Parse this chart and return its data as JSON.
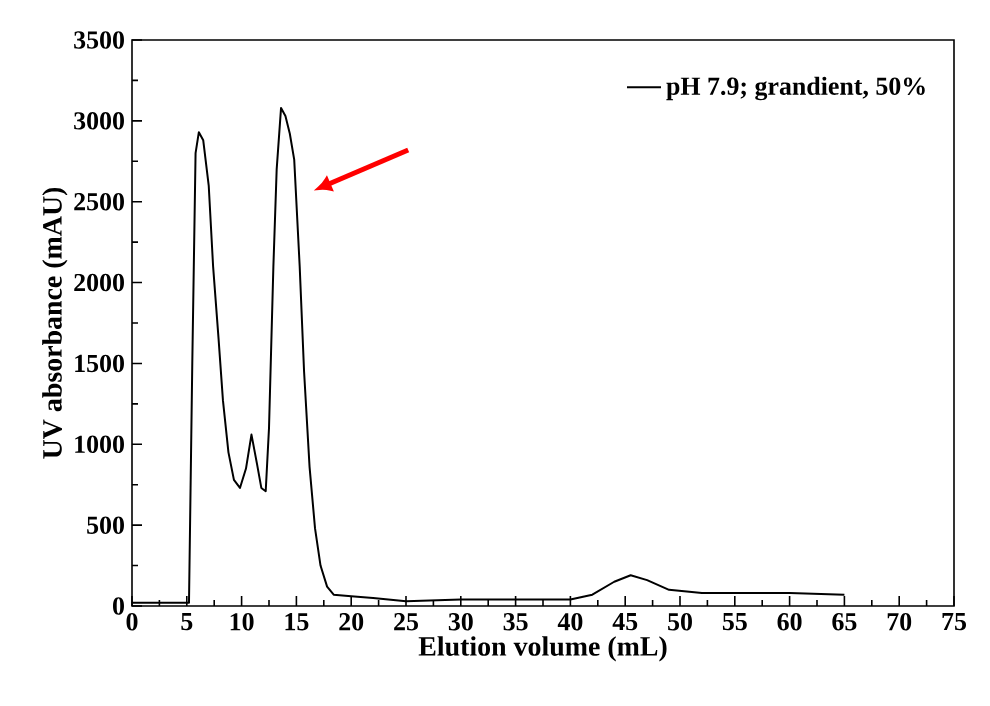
{
  "chart_data": {
    "type": "line",
    "xlabel": "Elution volume (mL)",
    "ylabel": "UV absorbance (mAU)",
    "xlim": [
      0,
      75
    ],
    "ylim": [
      0,
      3500
    ],
    "xticks": [
      0,
      5,
      10,
      15,
      20,
      25,
      30,
      35,
      40,
      45,
      50,
      55,
      60,
      65,
      70,
      75
    ],
    "yticks": [
      0,
      500,
      1000,
      1500,
      2000,
      2500,
      3000,
      3500
    ],
    "legend": "top right",
    "grid": false,
    "series": [
      {
        "name": "pH 7.9; grandient, 50%",
        "color": "#000000",
        "x": [
          0,
          2,
          4,
          5.2,
          5.5,
          5.8,
          6.1,
          6.5,
          7.0,
          7.4,
          7.9,
          8.3,
          8.8,
          9.3,
          9.85,
          10.4,
          10.9,
          11.4,
          11.8,
          12.2,
          12.5,
          12.9,
          13.2,
          13.6,
          14.0,
          14.4,
          14.8,
          15.3,
          15.7,
          16.2,
          16.7,
          17.2,
          17.8,
          18.4,
          20,
          22,
          25,
          30,
          35,
          40,
          42,
          44,
          45.5,
          47,
          49,
          52,
          55,
          60,
          65
        ],
        "values": [
          20,
          20,
          20,
          20,
          1500,
          2800,
          2930,
          2880,
          2600,
          2100,
          1650,
          1270,
          950,
          780,
          730,
          850,
          1060,
          880,
          730,
          710,
          1100,
          2100,
          2700,
          3080,
          3030,
          2920,
          2760,
          2100,
          1450,
          860,
          480,
          250,
          120,
          70,
          60,
          50,
          30,
          40,
          40,
          40,
          70,
          150,
          190,
          160,
          100,
          80,
          80,
          80,
          70
        ]
      }
    ]
  }
}
